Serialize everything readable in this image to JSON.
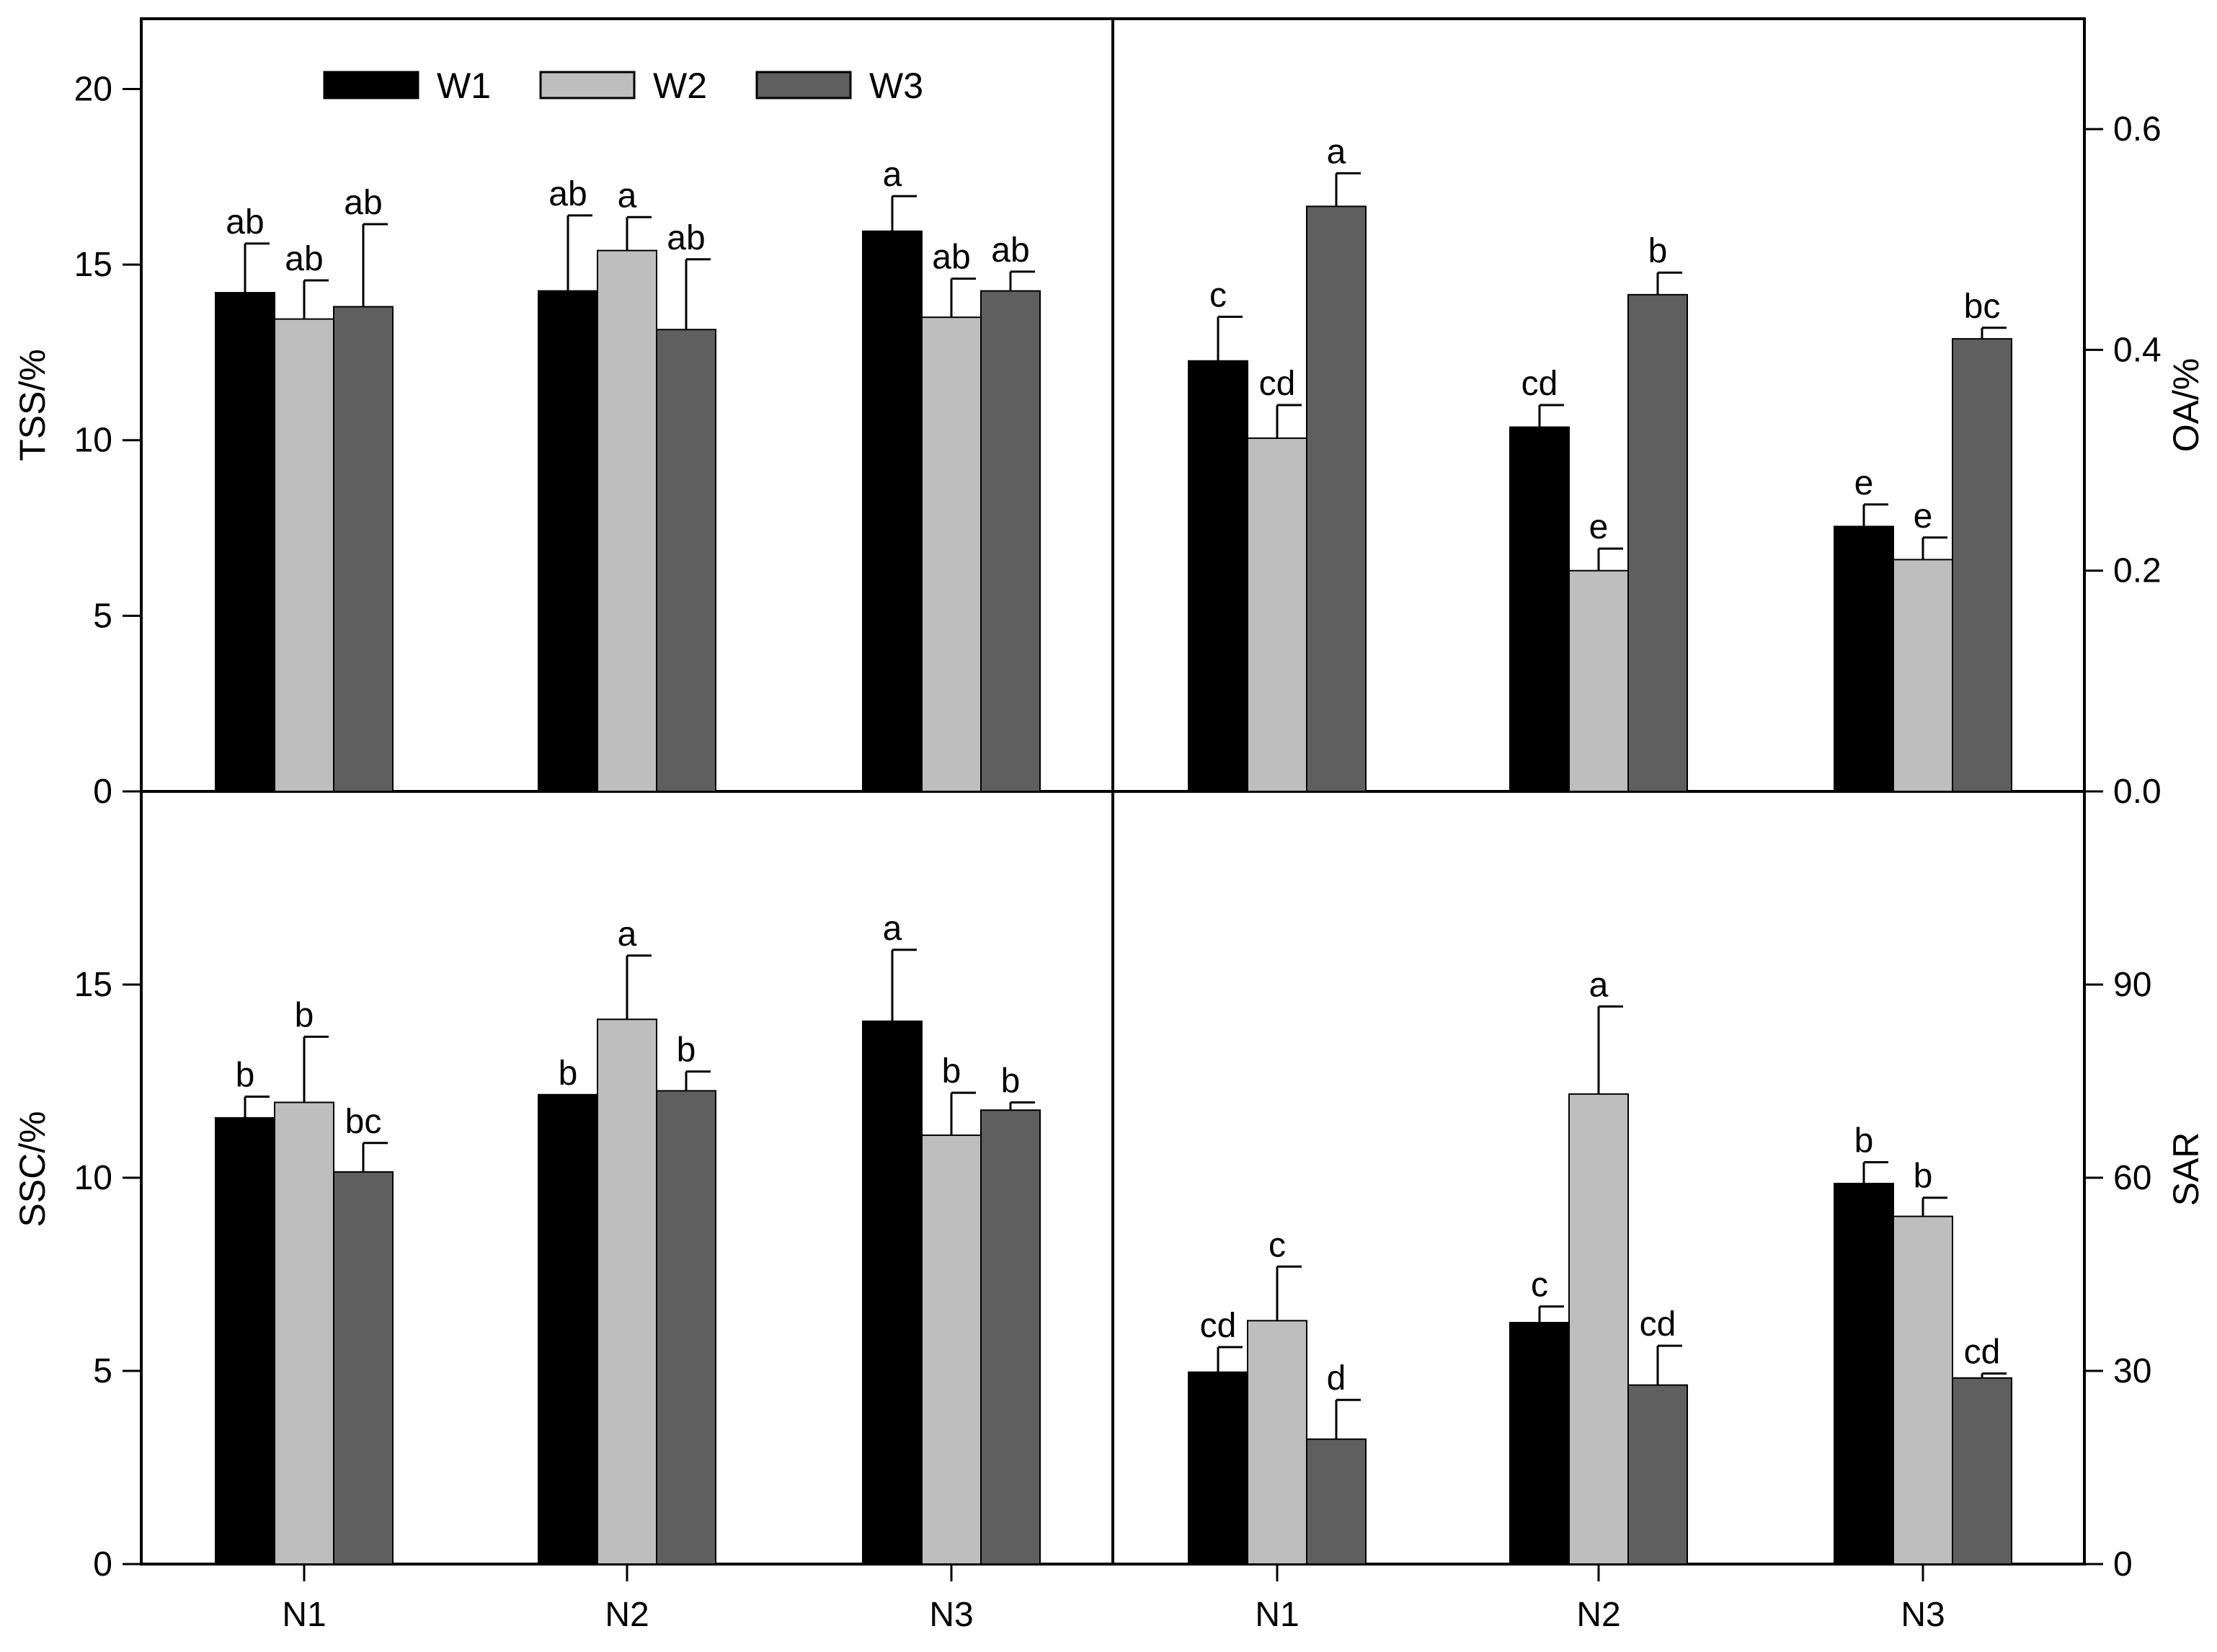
{
  "chart_data": [
    {
      "id": "tss",
      "type": "bar",
      "position": "top-left",
      "categories": [
        "N1",
        "N2",
        "N3"
      ],
      "ylabel": "TSS/%",
      "ylim": [
        0,
        22
      ],
      "yticks": [
        "0",
        "5",
        "10",
        "15",
        "20"
      ],
      "yaxis_side": "left",
      "series": [
        {
          "name": "W1",
          "values": [
            14.2,
            14.25,
            15.95
          ],
          "errors": [
            1.4,
            2.15,
            1.0
          ],
          "labels": [
            "ab",
            "ab",
            "a"
          ]
        },
        {
          "name": "W2",
          "values": [
            13.45,
            15.4,
            13.5
          ],
          "errors": [
            1.1,
            0.95,
            1.1
          ],
          "labels": [
            "ab",
            "a",
            "ab"
          ]
        },
        {
          "name": "W3",
          "values": [
            13.8,
            13.15,
            14.25
          ],
          "errors": [
            2.35,
            2.0,
            0.55
          ],
          "labels": [
            "ab",
            "ab",
            "ab"
          ]
        }
      ]
    },
    {
      "id": "oa",
      "type": "bar",
      "position": "top-right",
      "categories": [
        "N1",
        "N2",
        "N3"
      ],
      "ylabel": "OA/%",
      "ylim": [
        0,
        0.7
      ],
      "yticks": [
        "0.0",
        "0.2",
        "0.4",
        "0.6"
      ],
      "yaxis_side": "right",
      "series": [
        {
          "name": "W1",
          "values": [
            0.39,
            0.33,
            0.24
          ],
          "errors": [
            0.04,
            0.02,
            0.02
          ],
          "labels": [
            "c",
            "cd",
            "e"
          ]
        },
        {
          "name": "W2",
          "values": [
            0.32,
            0.2,
            0.21
          ],
          "errors": [
            0.03,
            0.02,
            0.02
          ],
          "labels": [
            "cd",
            "e",
            "e"
          ]
        },
        {
          "name": "W3",
          "values": [
            0.53,
            0.45,
            0.41
          ],
          "errors": [
            0.03,
            0.02,
            0.01
          ],
          "labels": [
            "a",
            "b",
            "bc"
          ]
        }
      ]
    },
    {
      "id": "ssc",
      "type": "bar",
      "position": "bottom-left",
      "categories": [
        "N1",
        "N2",
        "N3"
      ],
      "ylabel": "SSC/%",
      "ylim": [
        0,
        20
      ],
      "yticks": [
        "0",
        "5",
        "10",
        "15"
      ],
      "yaxis_side": "left",
      "series": [
        {
          "name": "W1",
          "values": [
            11.55,
            12.15,
            14.05
          ],
          "errors": [
            0.55,
            0.0,
            1.85
          ],
          "labels": [
            "b",
            "b",
            "a"
          ]
        },
        {
          "name": "W2",
          "values": [
            11.95,
            14.1,
            11.1
          ],
          "errors": [
            1.7,
            1.65,
            1.1
          ],
          "labels": [
            "b",
            "a",
            "b"
          ]
        },
        {
          "name": "W3",
          "values": [
            10.15,
            12.25,
            11.75
          ],
          "errors": [
            0.75,
            0.5,
            0.2
          ],
          "labels": [
            "bc",
            "b",
            "b"
          ]
        }
      ]
    },
    {
      "id": "sar",
      "type": "bar",
      "position": "bottom-right",
      "categories": [
        "N1",
        "N2",
        "N3"
      ],
      "ylabel": "SAR",
      "ylim": [
        0,
        120
      ],
      "yticks": [
        "0",
        "30",
        "60",
        "90"
      ],
      "yaxis_side": "right",
      "series": [
        {
          "name": "W1",
          "values": [
            29.8,
            37.5,
            59.1
          ],
          "errors": [
            3.9,
            2.5,
            3.3
          ],
          "labels": [
            "cd",
            "c",
            "b"
          ]
        },
        {
          "name": "W2",
          "values": [
            37.8,
            73.0,
            54.0
          ],
          "errors": [
            8.4,
            13.6,
            2.9
          ],
          "labels": [
            "c",
            "a",
            "b"
          ]
        },
        {
          "name": "W3",
          "values": [
            19.4,
            27.8,
            28.9
          ],
          "errors": [
            6.1,
            6.1,
            0.7
          ],
          "labels": [
            "d",
            "cd",
            "cd"
          ]
        }
      ]
    }
  ],
  "legend": {
    "placement": "top-left panel, top-center",
    "entries": [
      "W1",
      "W2",
      "W3"
    ]
  },
  "colors": {
    "W1": "#000000",
    "W2": "#bebebe",
    "W3": "#5f5f5f",
    "axis": "#000000"
  }
}
